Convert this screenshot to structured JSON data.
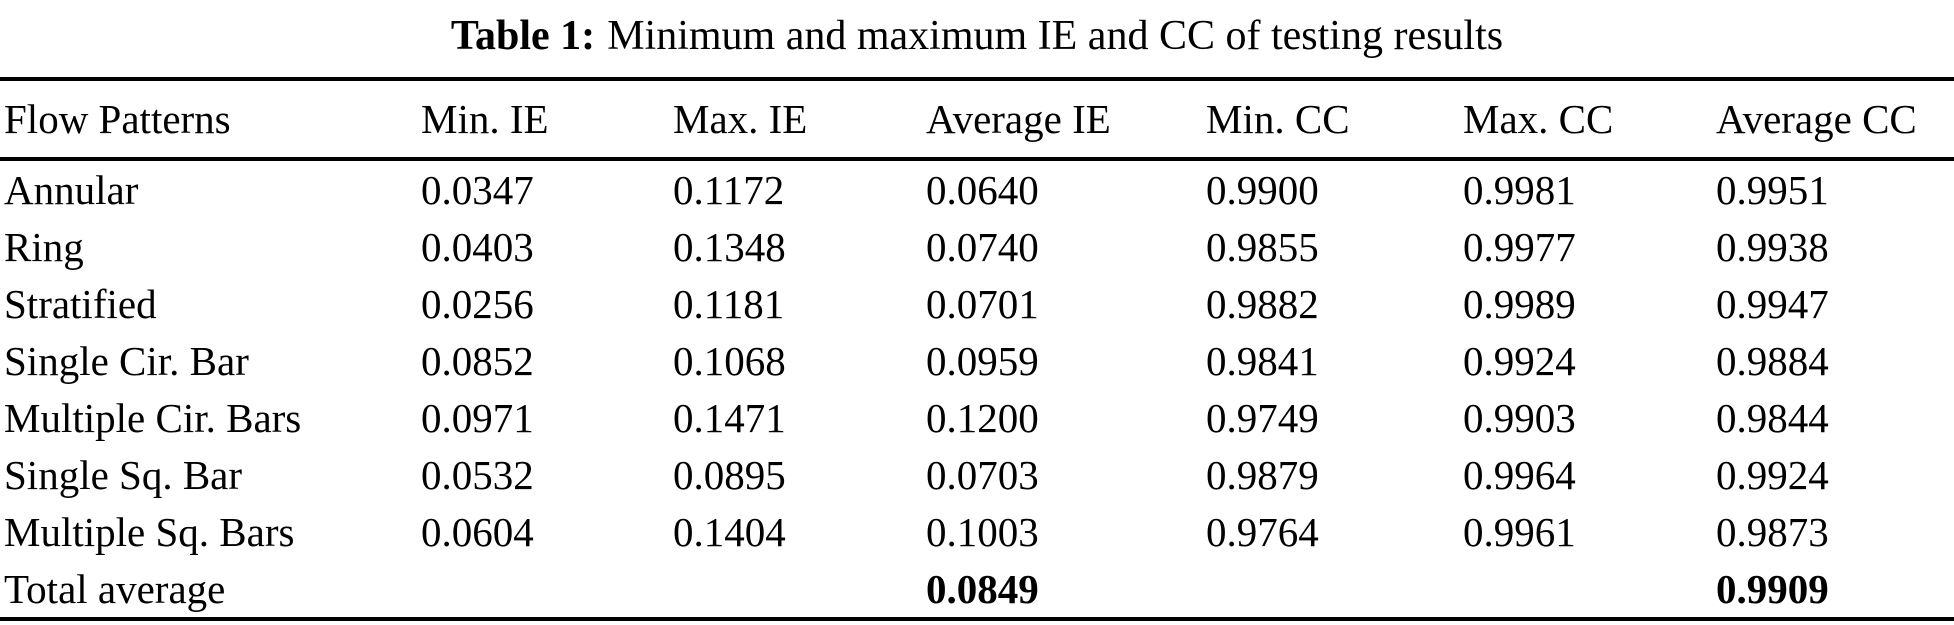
{
  "title": {
    "label": "Table 1:",
    "caption": "Minimum and maximum IE and CC of testing results"
  },
  "table": {
    "columns": [
      "Flow Patterns",
      "Min. IE",
      "Max. IE",
      "Average IE",
      "Min. CC",
      "Max. CC",
      "Average CC"
    ],
    "rows": [
      {
        "cells": [
          "Annular",
          "0.0347",
          "0.1172",
          "0.0640",
          "0.9900",
          "0.9981",
          "0.9951"
        ],
        "bold_cells": []
      },
      {
        "cells": [
          "Ring",
          "0.0403",
          "0.1348",
          "0.0740",
          "0.9855",
          "0.9977",
          "0.9938"
        ],
        "bold_cells": []
      },
      {
        "cells": [
          "Stratified",
          "0.0256",
          "0.1181",
          "0.0701",
          "0.9882",
          "0.9989",
          "0.9947"
        ],
        "bold_cells": []
      },
      {
        "cells": [
          "Single Cir. Bar",
          "0.0852",
          "0.1068",
          "0.0959",
          "0.9841",
          "0.9924",
          "0.9884"
        ],
        "bold_cells": []
      },
      {
        "cells": [
          "Multiple Cir. Bars",
          "0.0971",
          "0.1471",
          "0.1200",
          "0.9749",
          "0.9903",
          "0.9844"
        ],
        "bold_cells": []
      },
      {
        "cells": [
          "Single Sq. Bar",
          "0.0532",
          "0.0895",
          "0.0703",
          "0.9879",
          "0.9964",
          "0.9924"
        ],
        "bold_cells": []
      },
      {
        "cells": [
          "Multiple Sq. Bars",
          "0.0604",
          "0.1404",
          "0.1003",
          "0.9764",
          "0.9961",
          "0.9873"
        ],
        "bold_cells": []
      },
      {
        "cells": [
          "Total average",
          "",
          "",
          "0.0849",
          "",
          "",
          "0.9909"
        ],
        "bold_cells": [
          3,
          6
        ]
      }
    ]
  },
  "colors": {
    "text": "#000000",
    "background": "#ffffff",
    "rule": "#000000"
  }
}
